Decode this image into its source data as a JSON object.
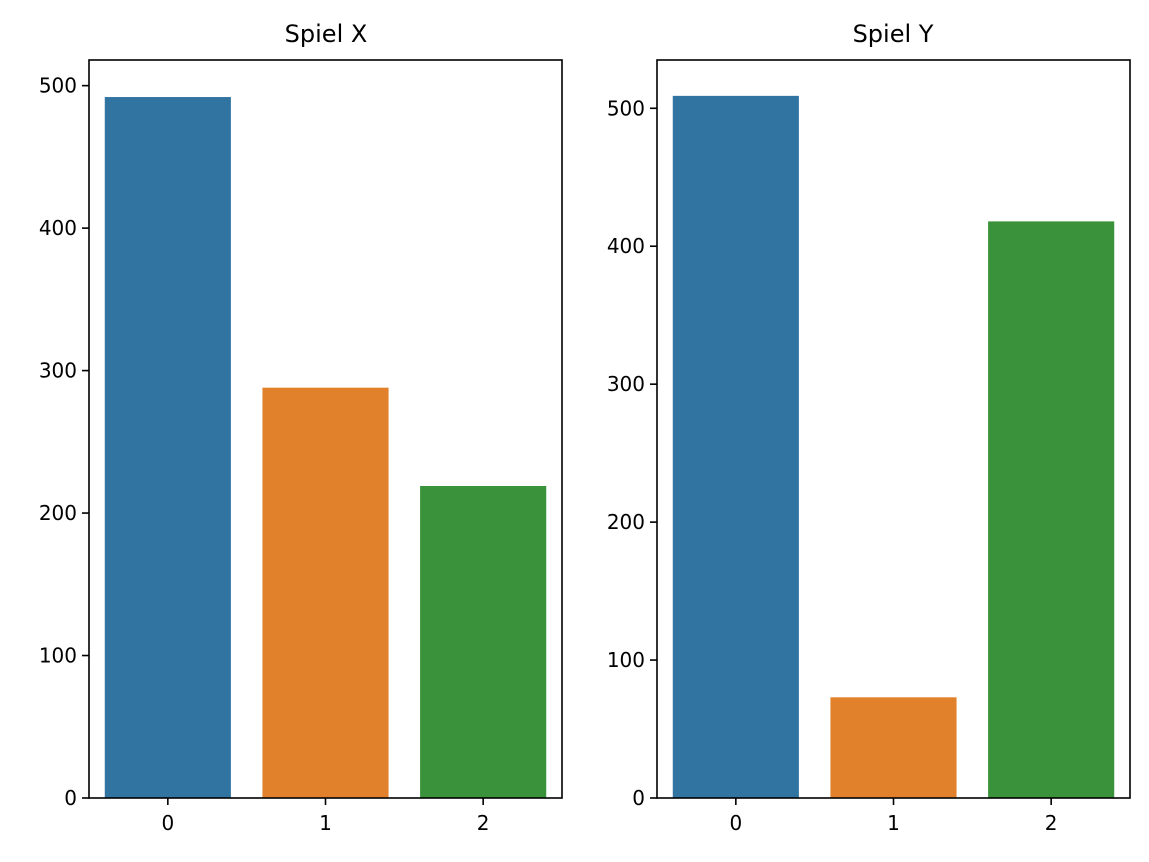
{
  "chart_data": [
    {
      "type": "bar",
      "title": "Spiel X",
      "xlabel": "",
      "ylabel": "",
      "categories": [
        "0",
        "1",
        "2"
      ],
      "values": [
        492,
        288,
        219
      ],
      "colors": [
        "#3274a1",
        "#e1812c",
        "#3a923a"
      ],
      "ylim": [
        0,
        518
      ],
      "yticks": [
        0,
        100,
        200,
        300,
        400,
        500
      ],
      "grid": false,
      "legend": "none"
    },
    {
      "type": "bar",
      "title": "Spiel Y",
      "xlabel": "",
      "ylabel": "",
      "categories": [
        "0",
        "1",
        "2"
      ],
      "values": [
        509,
        73,
        418
      ],
      "colors": [
        "#3274a1",
        "#e1812c",
        "#3a923a"
      ],
      "ylim": [
        0,
        535
      ],
      "yticks": [
        0,
        100,
        200,
        300,
        400,
        500
      ],
      "grid": false,
      "legend": "none"
    }
  ]
}
